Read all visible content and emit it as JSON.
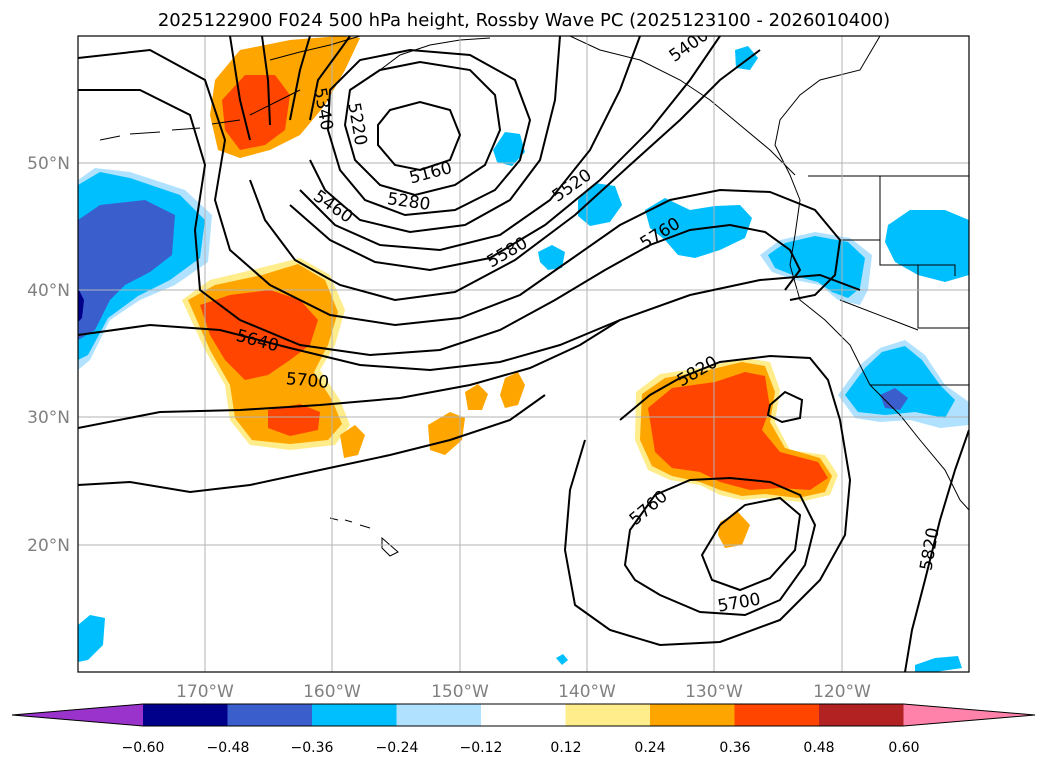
{
  "title": "2025122900 F024 500 hPa height, Rossby Wave PC (2025123100 - 2026010400)",
  "map": {
    "projection": "cylindrical",
    "lon_range": [
      -180,
      -110
    ],
    "lat_range": [
      10,
      60
    ],
    "lat_labels": [
      "50°N",
      "40°N",
      "30°N",
      "20°N"
    ],
    "lon_labels": [
      "170°W",
      "160°W",
      "150°W",
      "140°W",
      "130°W",
      "120°W"
    ],
    "contour_units": "gpm",
    "contour_labels": [
      "5340",
      "5220",
      "5160",
      "5280",
      "5460",
      "5520",
      "5580",
      "5400",
      "5760",
      "5640",
      "5700",
      "5820",
      "5760",
      "5700",
      "5820"
    ],
    "contour_levels": [
      5160,
      5220,
      5280,
      5340,
      5400,
      5460,
      5520,
      5580,
      5640,
      5700,
      5760,
      5820
    ]
  },
  "colorbar": {
    "ticks": [
      "−0.60",
      "−0.48",
      "−0.36",
      "−0.24",
      "−0.12",
      "0.12",
      "0.24",
      "0.36",
      "0.48",
      "0.60"
    ],
    "bins": [
      {
        "from": null,
        "to": -0.6,
        "color": "#9933cc"
      },
      {
        "from": -0.6,
        "to": -0.48,
        "color": "#00008b"
      },
      {
        "from": -0.48,
        "to": -0.36,
        "color": "#3a5fcd"
      },
      {
        "from": -0.36,
        "to": -0.24,
        "color": "#00bfff"
      },
      {
        "from": -0.24,
        "to": -0.12,
        "color": "#b0e2ff"
      },
      {
        "from": -0.12,
        "to": 0.12,
        "color": "#ffffff"
      },
      {
        "from": 0.12,
        "to": 0.24,
        "color": "#ffec8b"
      },
      {
        "from": 0.24,
        "to": 0.36,
        "color": "#ffa500"
      },
      {
        "from": 0.36,
        "to": 0.48,
        "color": "#ff4500"
      },
      {
        "from": 0.48,
        "to": 0.6,
        "color": "#b22222"
      },
      {
        "from": 0.6,
        "to": null,
        "color": "#ff82ab"
      }
    ]
  }
}
